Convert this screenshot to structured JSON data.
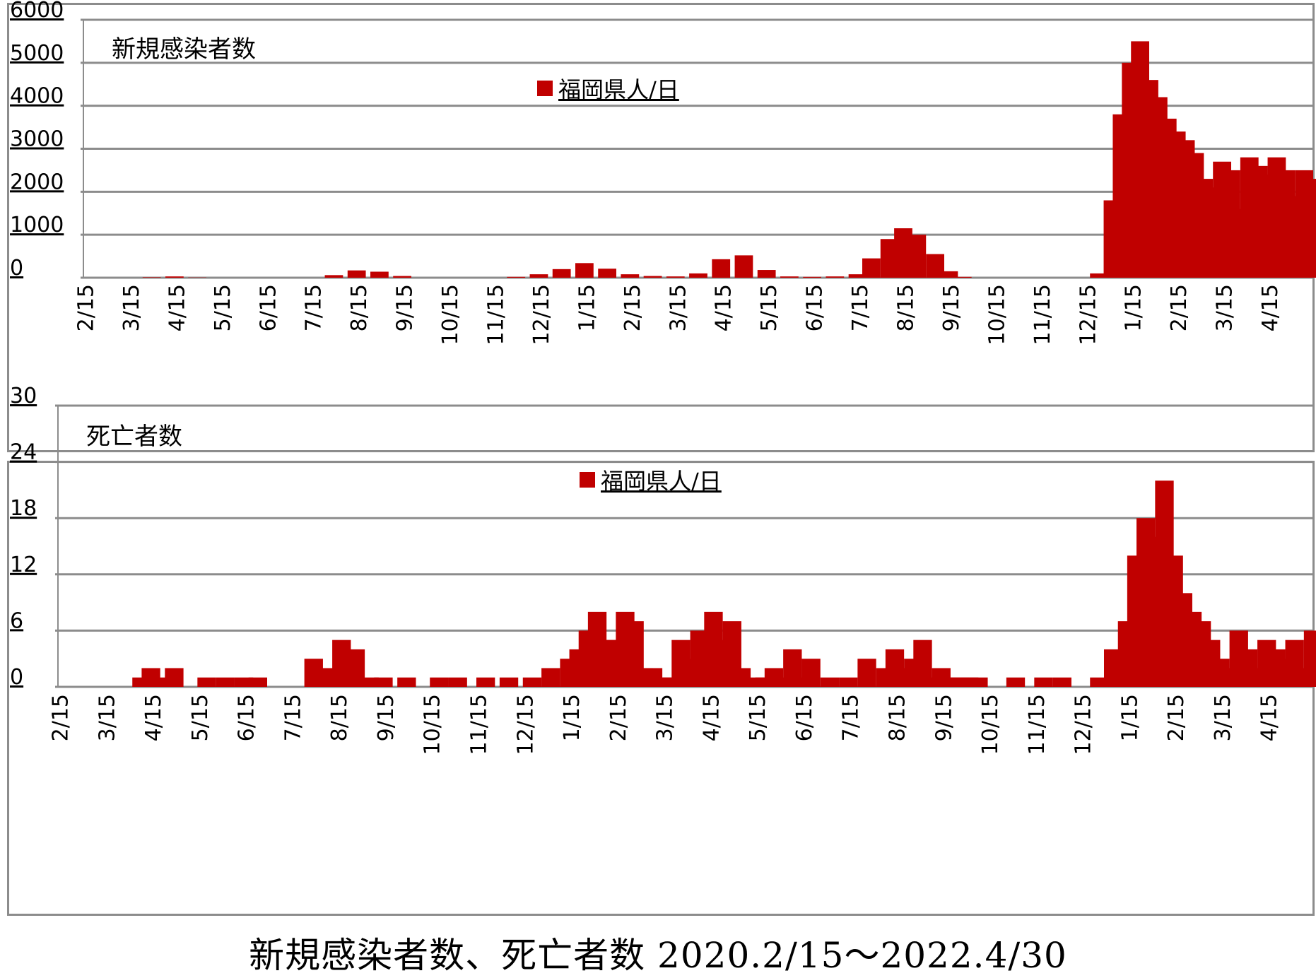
{
  "caption": "新規感染者数、死亡者数 2020.2/15〜2022.4/30",
  "colors": {
    "series": "#c00000",
    "grid": "#8c8c8c",
    "frame": "#8c8c8c"
  },
  "chart_data": [
    {
      "type": "bar",
      "title": "新規感染者数",
      "legend": "福岡県人/日",
      "legend_position": "top-center",
      "grid": true,
      "yticks": [
        "6000",
        "5000",
        "4000",
        "3000",
        "2000",
        "1000",
        "0"
      ],
      "ylim": [
        0,
        6000
      ],
      "xticks": [
        "2/15",
        "3/15",
        "4/15",
        "5/15",
        "6/15",
        "7/15",
        "8/15",
        "9/15",
        "10/15",
        "11/15",
        "12/15",
        "1/15",
        "2/15",
        "3/15",
        "4/15",
        "5/15",
        "6/15",
        "7/15",
        "8/15",
        "9/15",
        "10/15",
        "11/15",
        "12/15",
        "1/15",
        "2/15",
        "3/15",
        "4/15"
      ],
      "series": [
        {
          "name": "福岡県人/日",
          "x_month_index": [
            1.5,
            2,
            2.5,
            5.5,
            6,
            6.5,
            7,
            7.5,
            9.5,
            10,
            10.5,
            11,
            11.5,
            12,
            12.5,
            13,
            13.5,
            14,
            14.5,
            15,
            15.5,
            16,
            16.5,
            17,
            17.3,
            17.7,
            18,
            18.3,
            18.7,
            19,
            19.3,
            19.7,
            20,
            22.3,
            22.6,
            22.8,
            23,
            23.2,
            23.4,
            23.6,
            23.8,
            24,
            24.2,
            24.4,
            24.6,
            24.8,
            25,
            25.2,
            25.4,
            25.6,
            25.8,
            26,
            26.2,
            26.4,
            26.6,
            26.8,
            27
          ],
          "values": [
            10,
            30,
            5,
            60,
            170,
            140,
            40,
            0,
            20,
            80,
            200,
            340,
            210,
            80,
            40,
            30,
            100,
            430,
            520,
            180,
            30,
            20,
            30,
            80,
            450,
            900,
            1150,
            1000,
            550,
            150,
            20,
            0,
            0,
            100,
            1800,
            3800,
            5000,
            5500,
            4600,
            4200,
            3700,
            3400,
            3200,
            2900,
            2300,
            2100,
            2700,
            2500,
            1600,
            2800,
            2600,
            2400,
            2800,
            2500,
            1900,
            2500,
            2300
          ]
        }
      ]
    },
    {
      "type": "bar",
      "title": "死亡者数",
      "legend": "福岡県人/日",
      "legend_position": "top-center",
      "grid": true,
      "yticks": [
        "30",
        "24",
        "18",
        "12",
        "6",
        "0"
      ],
      "ylim": [
        0,
        30
      ],
      "xticks": [
        "2/15",
        "3/15",
        "4/15",
        "5/15",
        "6/15",
        "7/15",
        "8/15",
        "9/15",
        "10/15",
        "11/15",
        "12/15",
        "1/15",
        "2/15",
        "3/15",
        "4/15",
        "5/15",
        "6/15",
        "7/15",
        "8/15",
        "9/15",
        "10/15",
        "11/15",
        "12/15",
        "1/15",
        "2/15",
        "3/15",
        "4/15"
      ],
      "series": [
        {
          "name": "福岡県人/日",
          "x_month_index": [
            1.8,
            2,
            2.2,
            2.5,
            3.2,
            3.6,
            4,
            4.3,
            5.5,
            5.8,
            6.1,
            6.4,
            6.7,
            7,
            7.5,
            8.2,
            8.6,
            9.2,
            9.7,
            10.2,
            10.6,
            11,
            11.2,
            11.4,
            11.6,
            11.8,
            12,
            12.2,
            12.4,
            12.6,
            12.8,
            13,
            13.2,
            13.4,
            13.6,
            13.8,
            14.1,
            14.3,
            14.5,
            14.7,
            15,
            15.2,
            15.4,
            15.6,
            15.8,
            16,
            16.2,
            16.6,
            17,
            17.4,
            17.8,
            18,
            18.2,
            18.4,
            18.6,
            18.8,
            19,
            19.2,
            19.4,
            19.6,
            19.8,
            20,
            20.6,
            21.2,
            21.6,
            22.4,
            22.7,
            23,
            23.2,
            23.4,
            23.6,
            23.8,
            24,
            24.2,
            24.4,
            24.6,
            24.8,
            25,
            25.2,
            25.4,
            25.6,
            25.8,
            26,
            26.2,
            26.4,
            26.6,
            26.8,
            27
          ],
          "values": [
            1,
            2,
            1,
            2,
            1,
            1,
            1,
            1,
            3,
            2,
            5,
            4,
            1,
            1,
            1,
            1,
            1,
            1,
            1,
            1,
            2,
            3,
            4,
            6,
            8,
            5,
            5,
            8,
            7,
            2,
            2,
            1,
            1,
            5,
            3,
            6,
            8,
            5,
            7,
            2,
            1,
            1,
            2,
            1,
            4,
            1,
            3,
            1,
            1,
            3,
            2,
            4,
            2,
            3,
            5,
            1,
            2,
            1,
            1,
            1,
            1,
            0,
            1,
            1,
            1,
            1,
            4,
            7,
            14,
            18,
            16,
            22,
            14,
            10,
            8,
            7,
            5,
            3,
            2,
            6,
            4,
            2,
            5,
            4,
            3,
            5,
            2,
            6
          ]
        }
      ]
    }
  ]
}
